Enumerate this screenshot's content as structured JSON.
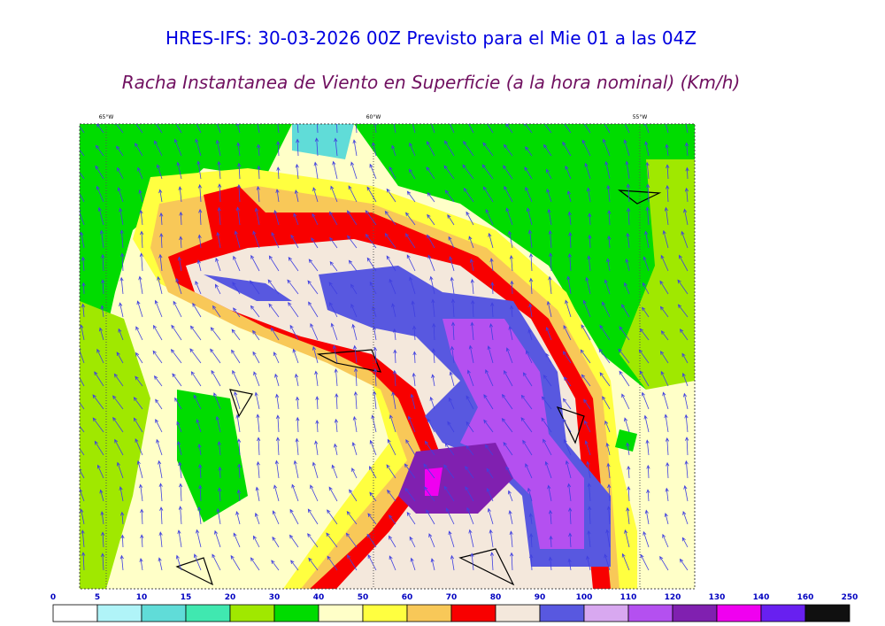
{
  "header": {
    "title": "HRES-IFS: 30-03-2026 00Z Previsto para el Mie 01 a las 04Z",
    "subtitle": "Racha Instantanea de Viento en Superficie (a la hora nominal) (Km/h)"
  },
  "map": {
    "longitude_labels": [
      "65°W",
      "60°W",
      "55°W"
    ]
  },
  "legend": {
    "levels": [
      0,
      5,
      10,
      15,
      20,
      30,
      40,
      50,
      60,
      70,
      80,
      90,
      100,
      110,
      120,
      130,
      140,
      160,
      250
    ],
    "colors": [
      "#ffffff",
      "#b0f4f8",
      "#60dcd8",
      "#40e8b0",
      "#a0e800",
      "#00dc00",
      "#ffffc8",
      "#ffff40",
      "#f8c858",
      "#f80000",
      "#f4e8dc",
      "#5858e0",
      "#d8a8f0",
      "#b450f0",
      "#8020b0",
      "#f000f0",
      "#6820f0",
      "#101010"
    ]
  }
}
